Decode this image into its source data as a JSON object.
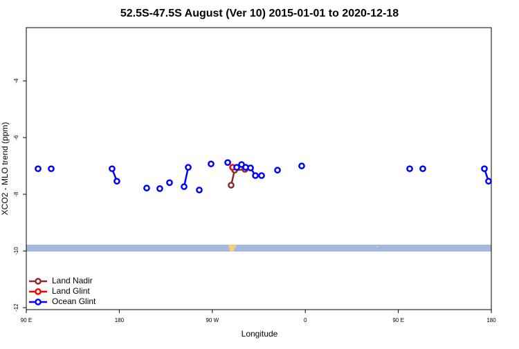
{
  "chart_data": {
    "type": "line",
    "title": "52.5S-47.5S August (Ver 10)   2015-01-01 to 2020-12-18",
    "x_label": "Longitude",
    "y_label": "XCO2 - MLO trend (ppm)",
    "xlim": [
      90,
      540
    ],
    "xticks": [
      {
        "value": 90,
        "label": "90 E"
      },
      {
        "value": 180,
        "label": "180"
      },
      {
        "value": 270,
        "label": "90 W"
      },
      {
        "value": 360,
        "label": "0"
      },
      {
        "value": 450,
        "label": "90 E"
      },
      {
        "value": 540,
        "label": "180"
      }
    ],
    "ylim": [
      -12.07,
      -2.12
    ],
    "yticks": [
      -4,
      -6,
      -8,
      -10,
      -12
    ],
    "legend": "bottom-left",
    "series": [
      {
        "name": "Land Nadir",
        "color": "#8b2a2a",
        "x": [
          288.2,
          291.6,
          301.6
        ],
        "values": [
          -7.68,
          -7.15,
          -7.12
        ]
      },
      {
        "name": "Land Glint",
        "color": "#ff0000",
        "x": [
          289.6
        ],
        "values": [
          -7.05
        ]
      },
      {
        "name": "Ocean Glint",
        "color": "#0000ff",
        "x": [
          101.4,
          null,
          114.1,
          null,
          173.0,
          177.7,
          null,
          206.5,
          null,
          219.2,
          null,
          228.6,
          null,
          242.7,
          246.7,
          null,
          257.4,
          null,
          268.8,
          null,
          284.9,
          null,
          293.6,
          298.3,
          302.3,
          307.0,
          311.7,
          317.7,
          null,
          333.1,
          null,
          356.5,
          null,
          461.0,
          null,
          473.7,
          null,
          533.3,
          537.3
        ],
        "values": [
          -7.1,
          null,
          -7.1,
          null,
          -7.1,
          -7.54,
          null,
          -7.78,
          null,
          -7.8,
          null,
          -7.59,
          null,
          -7.73,
          -7.05,
          null,
          -7.85,
          null,
          -6.93,
          null,
          -6.88,
          null,
          -7.05,
          -6.95,
          -7.05,
          -7.07,
          -7.34,
          -7.34,
          null,
          -7.15,
          null,
          -7.0,
          null,
          -7.1,
          null,
          -7.1,
          null,
          -7.1,
          -7.54
        ]
      }
    ]
  }
}
